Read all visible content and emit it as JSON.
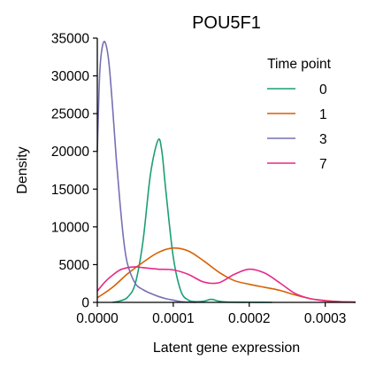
{
  "chart_data": {
    "type": "line",
    "title": "POU5F1",
    "xlabel": "Latent gene expression",
    "ylabel": "Density",
    "xlim": [
      0,
      0.00034
    ],
    "ylim": [
      0,
      35000
    ],
    "x_ticks": [
      "0.0000",
      "0.0001",
      "0.0002",
      "0.0003"
    ],
    "y_ticks": [
      "0",
      "5000",
      "10000",
      "15000",
      "20000",
      "25000",
      "30000",
      "35000"
    ],
    "grid": false,
    "legend": {
      "title": "Time point",
      "position": "top-right"
    },
    "series": [
      {
        "name": "0",
        "color": "#1b9e77",
        "x": [
          2e-05,
          3e-05,
          4e-05,
          5e-05,
          6e-05,
          7e-05,
          8e-05,
          8.5e-05,
          9e-05,
          0.0001,
          0.00011,
          0.00012,
          0.00013,
          0.00014,
          0.00015,
          0.00016,
          0.00017,
          0.00019,
          0.00021,
          0.00023
        ],
        "y": [
          0,
          200,
          700,
          2500,
          8000,
          17000,
          21500,
          20000,
          15000,
          6000,
          1500,
          300,
          100,
          150,
          400,
          150,
          50,
          20,
          10,
          0
        ]
      },
      {
        "name": "1",
        "color": "#d95f02",
        "x": [
          0.0,
          2e-05,
          4e-05,
          6e-05,
          8e-05,
          0.0001,
          0.00012,
          0.00014,
          0.00016,
          0.00018,
          0.0002,
          0.00022,
          0.00024,
          0.00026,
          0.00028,
          0.0003,
          0.00032,
          0.00034
        ],
        "y": [
          600,
          2000,
          3800,
          5300,
          6600,
          7200,
          6800,
          5500,
          4000,
          2900,
          2400,
          2000,
          1600,
          1000,
          500,
          250,
          100,
          50
        ]
      },
      {
        "name": "3",
        "color": "#7570b3",
        "x": [
          0.0,
          3e-06,
          6e-06,
          1e-05,
          1.5e-05,
          2e-05,
          2.5e-05,
          3e-05,
          3.5e-05,
          4e-05,
          5e-05,
          6e-05,
          7e-05,
          8e-05,
          9e-05,
          0.0001,
          0.00011,
          0.00013
        ],
        "y": [
          20000,
          30000,
          33500,
          34500,
          32000,
          26000,
          19000,
          13000,
          8000,
          5000,
          2500,
          1700,
          1200,
          800,
          500,
          300,
          100,
          0
        ]
      },
      {
        "name": "7",
        "color": "#e7298a",
        "x": [
          0.0,
          1e-05,
          2e-05,
          3e-05,
          4e-05,
          5e-05,
          6e-05,
          8e-05,
          0.0001,
          0.00012,
          0.00014,
          0.00016,
          0.00018,
          0.0002,
          0.00022,
          0.00024,
          0.00026,
          0.00028,
          0.0003,
          0.00032,
          0.00034
        ],
        "y": [
          1500,
          2700,
          3600,
          4300,
          4600,
          4700,
          4600,
          4400,
          4300,
          3700,
          2700,
          2600,
          3700,
          4400,
          3900,
          2600,
          1200,
          500,
          200,
          80,
          20
        ]
      }
    ]
  }
}
